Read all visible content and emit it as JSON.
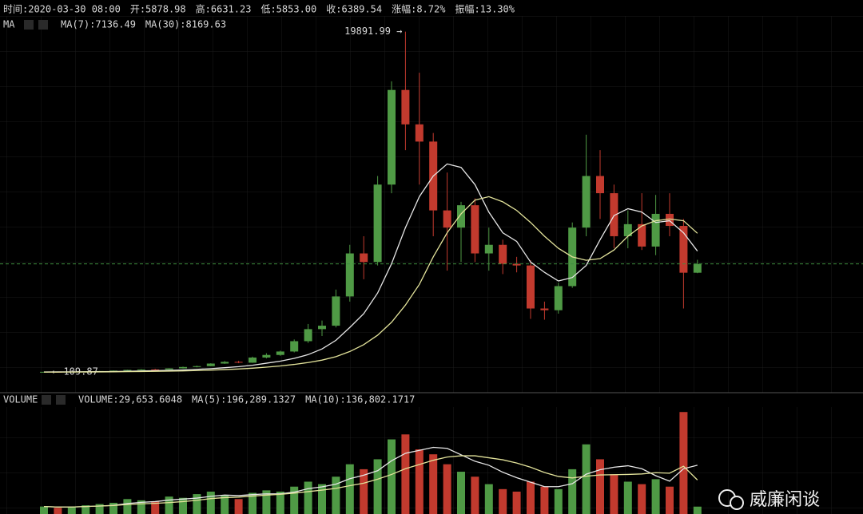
{
  "header": {
    "items": [
      {
        "text": "时间:2020-03-30 08:00",
        "color": "#d8d8d8"
      },
      {
        "text": "开:5878.98",
        "color": "#d8d8d8"
      },
      {
        "text": "高:6631.23",
        "color": "#d8d8d8"
      },
      {
        "text": "低:5853.00",
        "color": "#d8d8d8"
      },
      {
        "text": "收:6389.54",
        "color": "#d8d8d8"
      },
      {
        "text": "涨幅:",
        "color": "#d8d8d8"
      },
      {
        "text": "8.72%",
        "color": "#5fbf5a"
      },
      {
        "text": "振幅:13.30%",
        "color": "#d8d8d8"
      }
    ]
  },
  "watermark": "威廉闲谈",
  "chart_data": [
    {
      "type": "candlestick",
      "title": "MA",
      "up_color": "#4f9a45",
      "down_color": "#c23a2e",
      "ylim": [
        -1000,
        20800
      ],
      "current_price_line": true,
      "open": [
        110,
        120,
        118,
        130,
        145,
        165,
        190,
        230,
        260,
        250,
        320,
        400,
        450,
        600,
        700,
        650,
        950,
        1100,
        1300,
        1900,
        2600,
        2800,
        4500,
        7000,
        6500,
        11000,
        16500,
        14500,
        13500,
        9500,
        8500,
        9800,
        7000,
        7500,
        6400,
        6300,
        3800,
        3700,
        5100,
        8500,
        11500,
        10500,
        8000,
        8700,
        7400,
        9300,
        8600,
        5878.98
      ],
      "high": [
        125,
        130,
        135,
        150,
        170,
        200,
        240,
        280,
        300,
        330,
        420,
        480,
        620,
        750,
        760,
        1000,
        1200,
        1350,
        2000,
        2900,
        3100,
        4900,
        7500,
        8000,
        11500,
        17000,
        19891.99,
        17500,
        14000,
        11700,
        10000,
        10200,
        8500,
        7800,
        6800,
        6600,
        4200,
        5300,
        8800,
        13900,
        13000,
        11000,
        9500,
        10500,
        10400,
        10500,
        9000,
        6631.23
      ],
      "low": [
        109.87,
        112,
        115,
        125,
        140,
        160,
        180,
        220,
        240,
        245,
        310,
        380,
        440,
        580,
        620,
        640,
        900,
        1050,
        1250,
        1800,
        2200,
        2700,
        4200,
        5500,
        6300,
        10500,
        13000,
        11000,
        8000,
        6000,
        6500,
        6500,
        6000,
        5800,
        5900,
        3200,
        3150,
        3500,
        5000,
        8000,
        9000,
        7300,
        7300,
        7200,
        6900,
        8000,
        3800,
        5853
      ],
      "close": [
        120,
        118,
        130,
        145,
        165,
        190,
        230,
        260,
        250,
        320,
        400,
        450,
        600,
        700,
        650,
        950,
        1100,
        1300,
        1900,
        2600,
        2800,
        4500,
        7000,
        6500,
        11000,
        16500,
        14500,
        13500,
        9500,
        8500,
        9800,
        7000,
        7500,
        6400,
        6300,
        3800,
        3700,
        5100,
        8500,
        11500,
        10500,
        8000,
        8700,
        7400,
        9300,
        8600,
        5880,
        6389.54
      ],
      "series": [
        {
          "name": "MA(7):7136.49",
          "color": "#e6e6e6",
          "values": [
            112,
            115,
            118,
            122,
            128,
            138,
            152,
            170,
            188,
            205,
            230,
            265,
            305,
            360,
            420,
            500,
            620,
            740,
            900,
            1120,
            1450,
            1950,
            2700,
            3500,
            4700,
            6400,
            8500,
            10300,
            11500,
            12200,
            12000,
            11000,
            9400,
            8200,
            7700,
            6500,
            5900,
            5400,
            5600,
            6300,
            7800,
            9200,
            9600,
            9400,
            8800,
            8900,
            8200,
            7136.49
          ]
        },
        {
          "name": "MA(30):8169.63",
          "color": "#e2e29a",
          "values": [
            100,
            103,
            106,
            110,
            115,
            122,
            130,
            140,
            150,
            160,
            175,
            195,
            220,
            250,
            285,
            330,
            390,
            460,
            550,
            660,
            800,
            1000,
            1300,
            1700,
            2250,
            3000,
            4000,
            5200,
            6800,
            8200,
            9300,
            10100,
            10300,
            10000,
            9500,
            8800,
            8000,
            7300,
            6800,
            6600,
            6700,
            7200,
            8000,
            8600,
            8900,
            9000,
            8900,
            8169.63
          ]
        }
      ],
      "annotations": [
        {
          "label": "19891.99 →",
          "value": 19891.99,
          "index": 26
        },
        {
          "label": "← 109.87",
          "value": 109.87,
          "index": 0
        }
      ]
    },
    {
      "type": "bar",
      "title": "VOLUME",
      "value_legend": "VOLUME:29,653.6048",
      "ylim": [
        0,
        430000
      ],
      "values": [
        30000,
        25000,
        28000,
        35000,
        40000,
        45000,
        60000,
        55000,
        50000,
        70000,
        65000,
        80000,
        90000,
        75000,
        60000,
        85000,
        95000,
        90000,
        110000,
        130000,
        120000,
        150000,
        200000,
        180000,
        220000,
        300000,
        320000,
        260000,
        240000,
        200000,
        170000,
        150000,
        120000,
        100000,
        90000,
        130000,
        110000,
        100000,
        180000,
        280000,
        220000,
        160000,
        130000,
        120000,
        140000,
        110000,
        410000,
        29653.6048
      ],
      "series": [
        {
          "name": "MA(5):196,289.1327",
          "color": "#e6e6e6",
          "values": [
            30000,
            28000,
            28000,
            30000,
            32000,
            35000,
            42000,
            47000,
            50000,
            56000,
            60000,
            64000,
            71000,
            76000,
            74000,
            78000,
            81000,
            81000,
            88000,
            102000,
            109000,
            120000,
            142000,
            156000,
            174000,
            214000,
            244000,
            256000,
            268000,
            264000,
            238000,
            212000,
            196000,
            168000,
            146000,
            128000,
            110000,
            110000,
            122000,
            160000,
            178000,
            188000,
            194000,
            182000,
            154000,
            132000,
            182000,
            196289.1327
          ]
        },
        {
          "name": "MA(10):136,802.1717",
          "color": "#e2e29a",
          "values": [
            30000,
            28000,
            28000,
            30000,
            32000,
            34000,
            38000,
            41000,
            43000,
            46000,
            50000,
            55000,
            62000,
            66000,
            68000,
            72000,
            76000,
            79000,
            84000,
            90000,
            96000,
            103000,
            114000,
            124000,
            140000,
            159000,
            182000,
            199000,
            216000,
            229000,
            234000,
            234000,
            226000,
            218000,
            205000,
            188000,
            167000,
            151000,
            145000,
            152000,
            157000,
            158000,
            159000,
            161000,
            166000,
            164000,
            192000,
            136802.1717
          ]
        }
      ]
    }
  ]
}
